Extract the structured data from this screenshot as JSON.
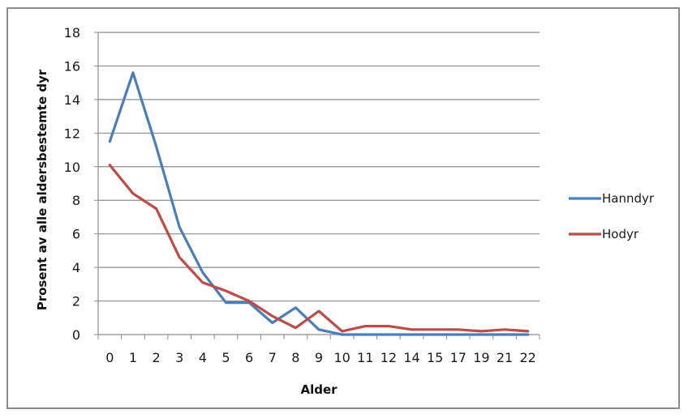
{
  "chart_data": {
    "type": "line",
    "title": "",
    "xlabel": "Alder",
    "ylabel": "Prosent av alle aldersbestemte dyr",
    "categories": [
      "0",
      "1",
      "2",
      "3",
      "4",
      "5",
      "6",
      "7",
      "8",
      "9",
      "10",
      "11",
      "12",
      "14",
      "15",
      "17",
      "19",
      "21",
      "22"
    ],
    "ylim": [
      0,
      18
    ],
    "yticks": [
      0,
      2,
      4,
      6,
      8,
      10,
      12,
      14,
      16,
      18
    ],
    "grid": true,
    "legend_position": "right",
    "series": [
      {
        "name": "Hanndyr",
        "color": "#4a7ebb",
        "values": [
          11.5,
          15.6,
          11.2,
          6.4,
          3.7,
          1.9,
          1.9,
          0.7,
          1.6,
          0.3,
          0.0,
          0.0,
          0.0,
          0.0,
          0.0,
          0.0,
          0.0,
          0.0,
          0.0
        ]
      },
      {
        "name": "Hodyr",
        "color": "#be4b48",
        "values": [
          10.1,
          8.4,
          7.5,
          4.6,
          3.1,
          2.6,
          2.0,
          1.1,
          0.4,
          1.4,
          0.2,
          0.5,
          0.5,
          0.3,
          0.3,
          0.3,
          0.2,
          0.3,
          0.2
        ]
      }
    ]
  }
}
